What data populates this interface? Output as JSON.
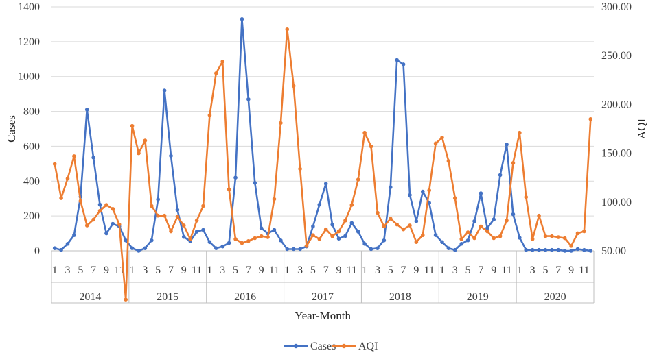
{
  "chart_data": {
    "type": "line",
    "xlabel": "Year-Month",
    "ylabel_left": "Cases",
    "ylabel_right": "AQI",
    "years": [
      "2014",
      "2015",
      "2016",
      "2017",
      "2018",
      "2019",
      "2020"
    ],
    "month_ticks": [
      "1",
      "3",
      "5",
      "7",
      "9",
      "11"
    ],
    "ylim_left": [
      0,
      1400
    ],
    "yticks_left": [
      "0",
      "200",
      "400",
      "600",
      "800",
      "1000",
      "1200",
      "1400"
    ],
    "ylim_right": [
      50,
      300
    ],
    "yticks_right": [
      "50.00",
      "100.00",
      "150.00",
      "200.00",
      "250.00",
      "300.00"
    ],
    "grid": "horizontal",
    "legend_position": "bottom",
    "series": [
      {
        "name": "Cases",
        "axis": "left",
        "color": "#4472C4",
        "values": [
          15,
          5,
          40,
          90,
          310,
          810,
          535,
          265,
          100,
          155,
          140,
          60,
          15,
          0,
          15,
          60,
          295,
          920,
          545,
          235,
          80,
          55,
          110,
          120,
          50,
          15,
          25,
          45,
          420,
          1330,
          870,
          390,
          130,
          100,
          120,
          60,
          10,
          10,
          10,
          25,
          140,
          265,
          385,
          150,
          70,
          85,
          160,
          110,
          40,
          10,
          15,
          60,
          365,
          1095,
          1070,
          320,
          170,
          340,
          275,
          90,
          50,
          15,
          5,
          40,
          60,
          170,
          330,
          130,
          180,
          435,
          610,
          210,
          75,
          5,
          5,
          5,
          5,
          5,
          5,
          0,
          0,
          10,
          5,
          0
        ]
      },
      {
        "name": "AQI",
        "axis": "right",
        "color": "#ED7D31",
        "values": [
          139,
          104,
          124,
          147,
          101,
          76,
          82,
          91,
          97,
          93,
          77,
          0,
          178,
          150,
          163,
          96,
          86,
          86,
          70,
          85,
          76,
          62,
          81,
          96,
          189,
          232,
          244,
          113,
          62,
          58,
          60,
          63,
          65,
          64,
          103,
          181,
          277,
          219,
          134,
          55,
          66,
          62,
          72,
          65,
          70,
          81,
          97,
          123,
          171,
          157,
          89,
          75,
          83,
          77,
          72,
          76,
          59,
          66,
          112,
          160,
          166,
          142,
          104,
          62,
          69,
          63,
          75,
          70,
          63,
          65,
          81,
          140,
          171,
          105,
          62,
          86,
          65,
          65,
          64,
          63,
          55,
          68,
          70,
          185
        ]
      }
    ]
  }
}
